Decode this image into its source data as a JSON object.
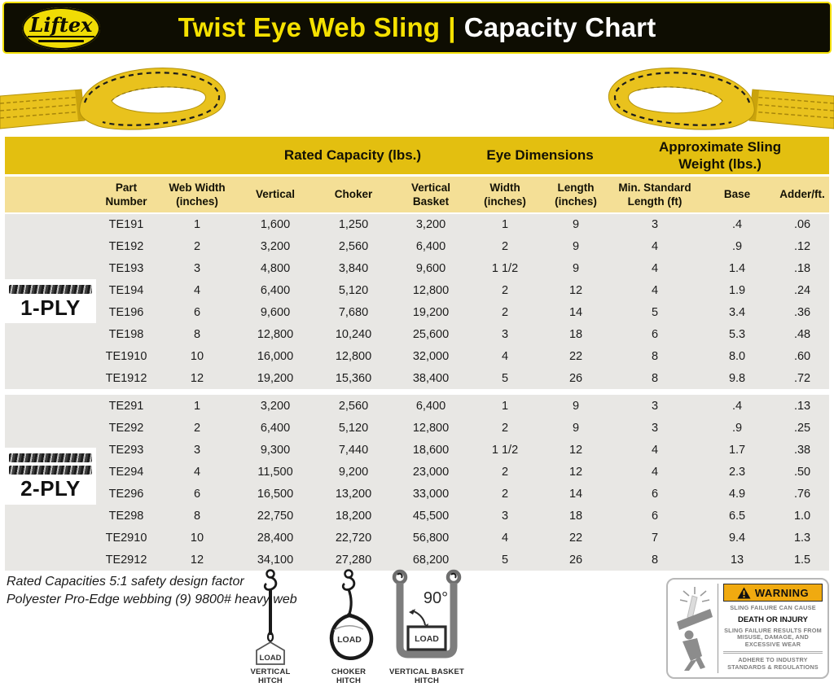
{
  "header": {
    "brand": "Liftex",
    "title_primary": "Twist Eye Web Sling",
    "title_separator": "|",
    "title_secondary": "Capacity Chart"
  },
  "table": {
    "group_headers": [
      "Rated Capacity (lbs.)",
      "Eye Dimensions",
      "Approximate Sling\nWeight (lbs.)"
    ],
    "columns": [
      "Part\nNumber",
      "Web Width\n(inches)",
      "Vertical",
      "Choker",
      "Vertical\nBasket",
      "Width\n(inches)",
      "Length\n(inches)",
      "Min. Standard\nLength (ft)",
      "Base",
      "Adder/ft."
    ],
    "sections": [
      {
        "ply": "1-PLY",
        "rows": [
          [
            "TE191",
            "1",
            "1,600",
            "1,250",
            "3,200",
            "1",
            "9",
            "3",
            ".4",
            ".06"
          ],
          [
            "TE192",
            "2",
            "3,200",
            "2,560",
            "6,400",
            "2",
            "9",
            "4",
            ".9",
            ".12"
          ],
          [
            "TE193",
            "3",
            "4,800",
            "3,840",
            "9,600",
            "1 1/2",
            "9",
            "4",
            "1.4",
            ".18"
          ],
          [
            "TE194",
            "4",
            "6,400",
            "5,120",
            "12,800",
            "2",
            "12",
            "4",
            "1.9",
            ".24"
          ],
          [
            "TE196",
            "6",
            "9,600",
            "7,680",
            "19,200",
            "2",
            "14",
            "5",
            "3.4",
            ".36"
          ],
          [
            "TE198",
            "8",
            "12,800",
            "10,240",
            "25,600",
            "3",
            "18",
            "6",
            "5.3",
            ".48"
          ],
          [
            "TE1910",
            "10",
            "16,000",
            "12,800",
            "32,000",
            "4",
            "22",
            "8",
            "8.0",
            ".60"
          ],
          [
            "TE1912",
            "12",
            "19,200",
            "15,360",
            "38,400",
            "5",
            "26",
            "8",
            "9.8",
            ".72"
          ]
        ]
      },
      {
        "ply": "2-PLY",
        "rows": [
          [
            "TE291",
            "1",
            "3,200",
            "2,560",
            "6,400",
            "1",
            "9",
            "3",
            ".4",
            ".13"
          ],
          [
            "TE292",
            "2",
            "6,400",
            "5,120",
            "12,800",
            "2",
            "9",
            "3",
            ".9",
            ".25"
          ],
          [
            "TE293",
            "3",
            "9,300",
            "7,440",
            "18,600",
            "1 1/2",
            "12",
            "4",
            "1.7",
            ".38"
          ],
          [
            "TE294",
            "4",
            "11,500",
            "9,200",
            "23,000",
            "2",
            "12",
            "4",
            "2.3",
            ".50"
          ],
          [
            "TE296",
            "6",
            "16,500",
            "13,200",
            "33,000",
            "2",
            "14",
            "6",
            "4.9",
            ".76"
          ],
          [
            "TE298",
            "8",
            "22,750",
            "18,200",
            "45,500",
            "3",
            "18",
            "6",
            "6.5",
            "1.0"
          ],
          [
            "TE2910",
            "10",
            "28,400",
            "22,720",
            "56,800",
            "4",
            "22",
            "7",
            "9.4",
            "1.3"
          ],
          [
            "TE2912",
            "12",
            "34,100",
            "27,280",
            "68,200",
            "5",
            "26",
            "8",
            "13",
            "1.5"
          ]
        ]
      }
    ]
  },
  "notes": {
    "line1": "Rated Capacities 5:1 safety design factor",
    "line2": "Polyester Pro-Edge webbing (9) 9800# heavy web"
  },
  "hitches": {
    "load_label": "LOAD",
    "items": [
      {
        "label": "VERTICAL\nHITCH"
      },
      {
        "label": "CHOKER\nHITCH"
      },
      {
        "label": "VERTICAL BASKET\nHITCH",
        "angle": "90°"
      }
    ]
  },
  "warning": {
    "title": "WARNING",
    "cause": "SLING FAILURE CAN CAUSE",
    "emphasis": "DEATH OR INJURY",
    "detail": "SLING FAILURE RESULTS FROM MISUSE, DAMAGE, AND EXCESSIVE WEAR",
    "footer": "ADHERE TO INDUSTRY STANDARDS & REGULATIONS"
  },
  "colors": {
    "gold_header": "#e3bf10",
    "subheader_yellow": "#f4df96",
    "row_gray": "#e8e7e4",
    "title_yellow": "#f5e100",
    "bar_black": "#0e0d02",
    "warning_amber": "#f0aa10",
    "sling_yellow": "#e9c21d"
  }
}
